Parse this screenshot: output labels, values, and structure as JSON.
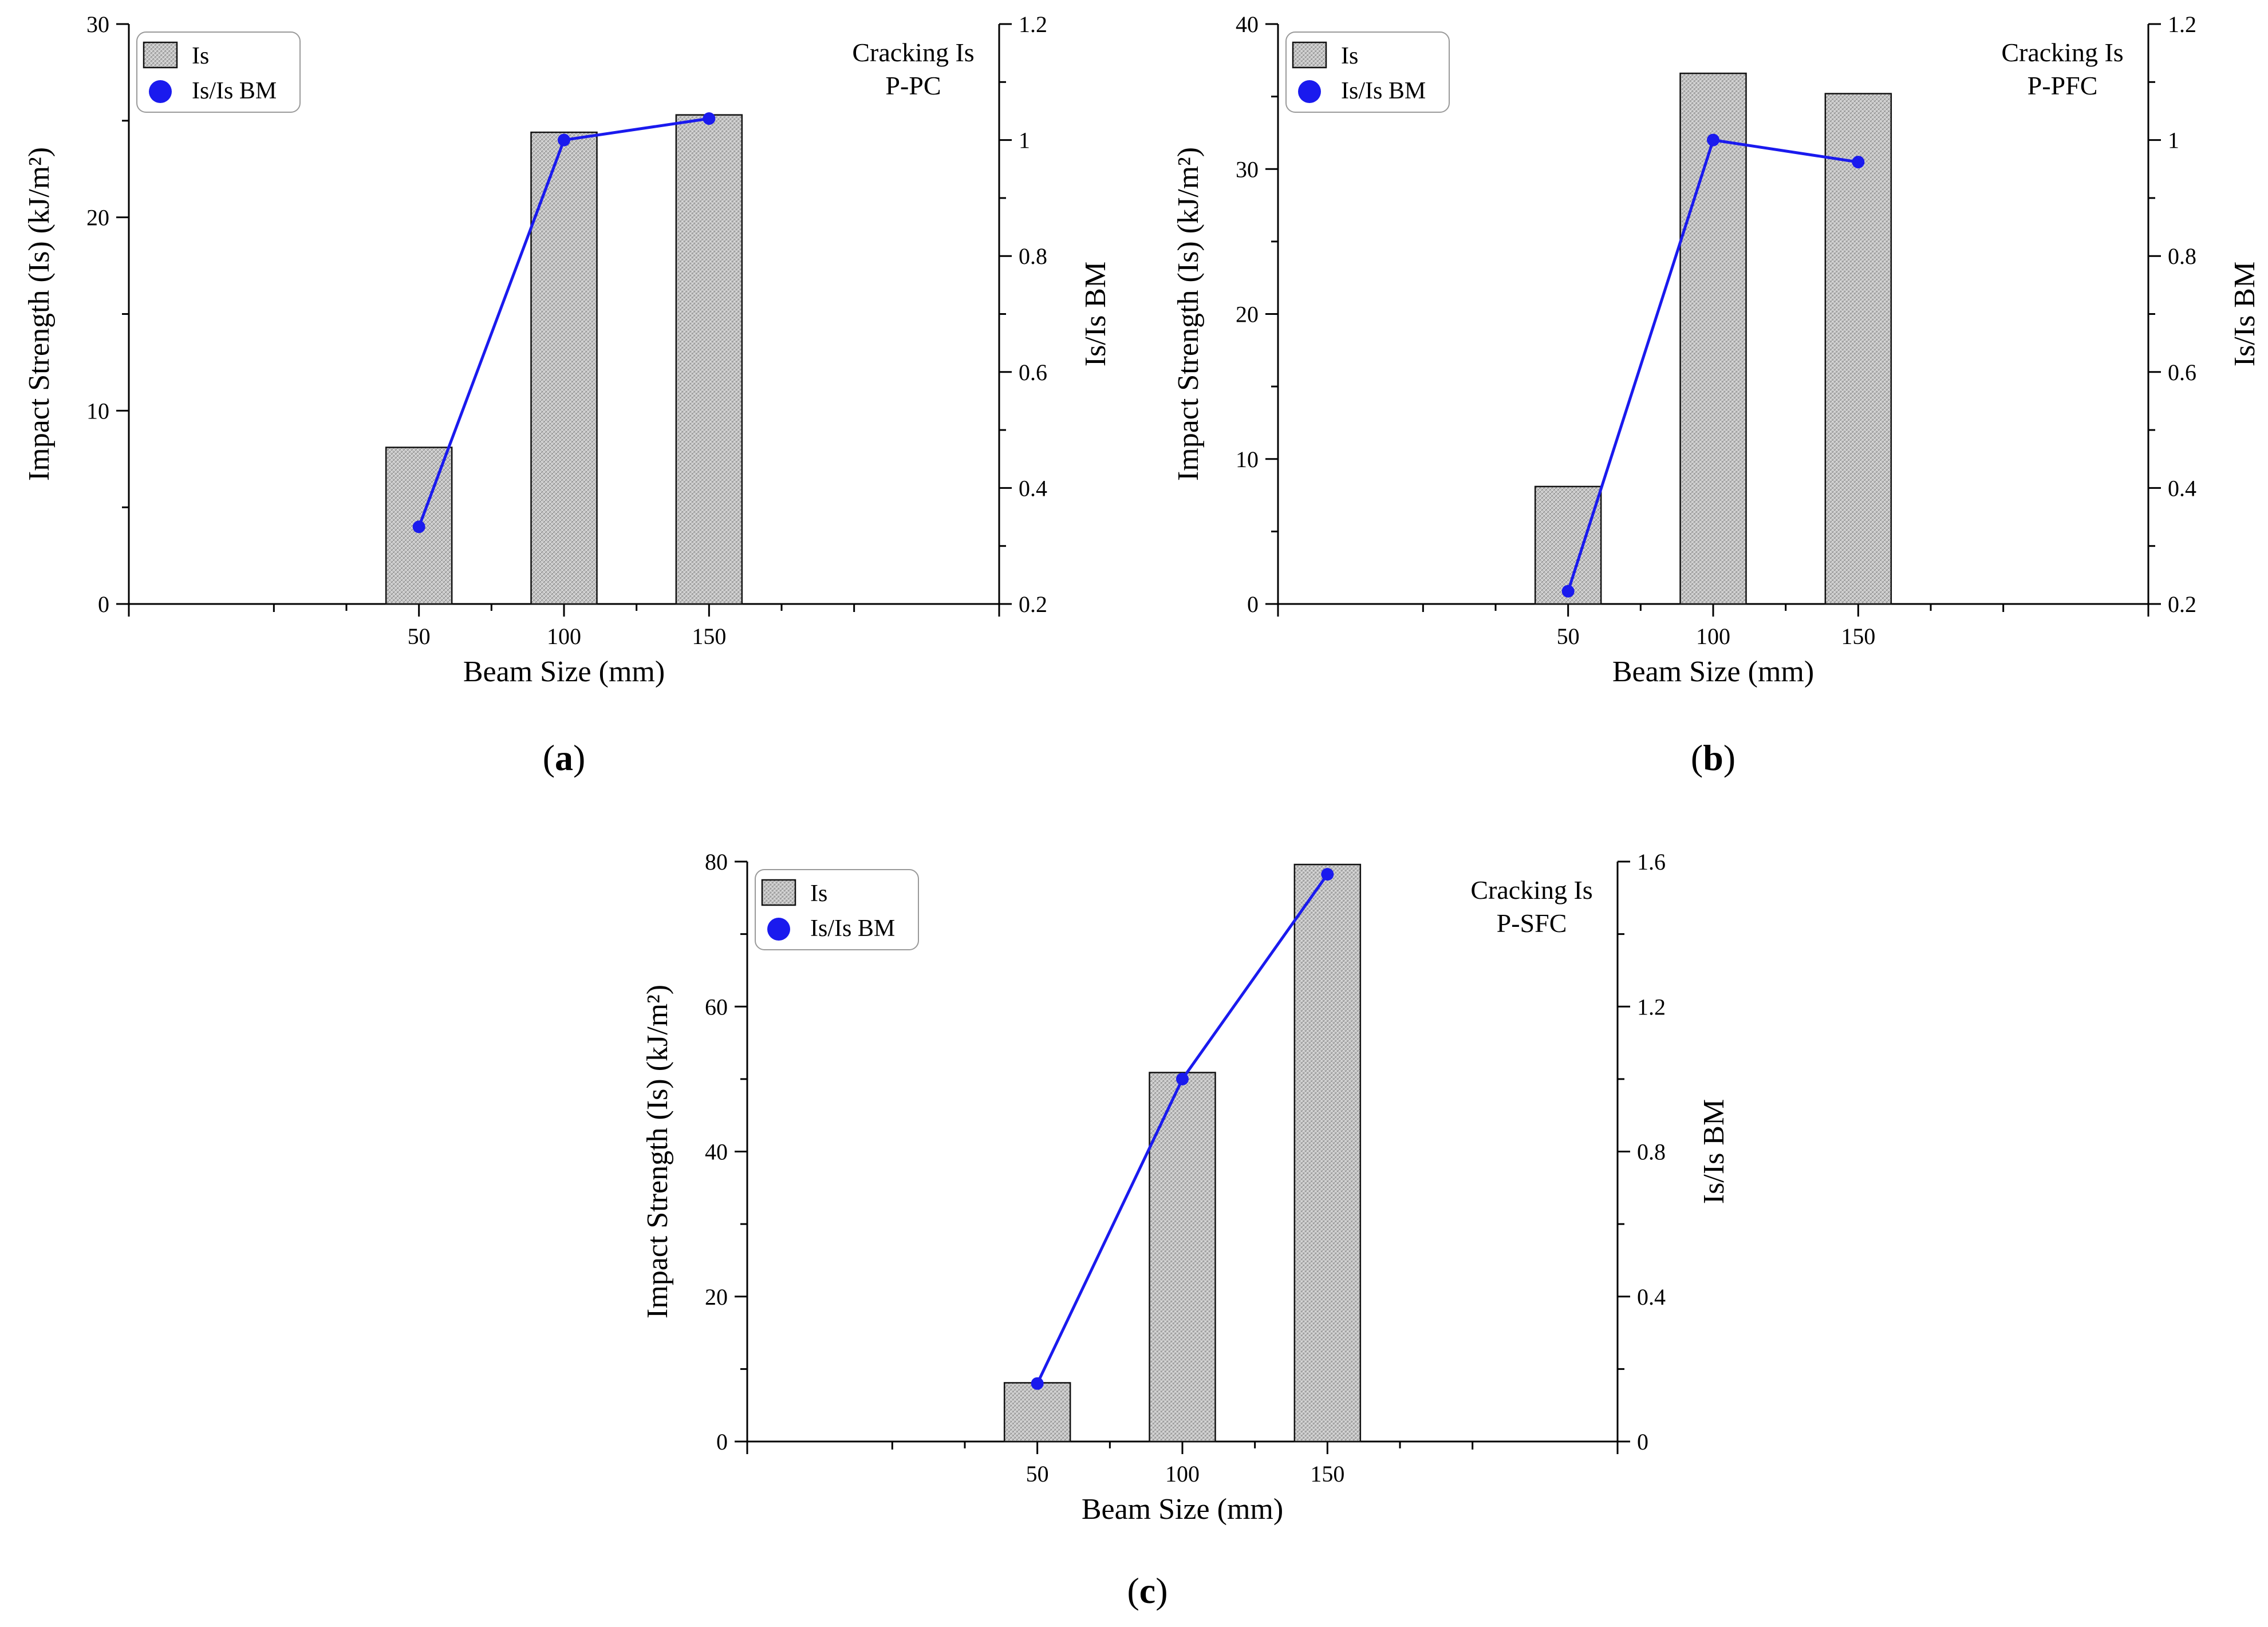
{
  "chart_data": [
    {
      "id": "a",
      "type": "bar",
      "panel_label": "a",
      "categories": [
        "50",
        "100",
        "150"
      ],
      "series": [
        {
          "name": "Is",
          "kind": "bar",
          "axis": "left",
          "values": [
            8.1,
            24.4,
            25.3
          ]
        },
        {
          "name": "Is/Is BM",
          "kind": "line",
          "axis": "right",
          "values": [
            0.333,
            1.0,
            1.037
          ]
        }
      ],
      "xlabel": "Beam Size (mm)",
      "ylabel": "Impact Strength (Is) (kJ/m²)",
      "y2label": "Is/Is BM",
      "ylim": [
        0,
        30
      ],
      "y_ticks": [
        "0",
        "10",
        "20",
        "30"
      ],
      "y2lim": [
        0.2,
        1.2
      ],
      "y2_ticks": [
        "0.2",
        "0.4",
        "0.6",
        "0.8",
        "1",
        "1.2"
      ],
      "annotation": [
        "Cracking Is",
        "P-PC"
      ],
      "legend": [
        "Is",
        "Is/Is BM"
      ]
    },
    {
      "id": "b",
      "type": "bar",
      "panel_label": "b",
      "categories": [
        "50",
        "100",
        "150"
      ],
      "series": [
        {
          "name": "Is",
          "kind": "bar",
          "axis": "left",
          "values": [
            8.1,
            36.6,
            35.2
          ]
        },
        {
          "name": "Is/Is BM",
          "kind": "line",
          "axis": "right",
          "values": [
            0.222,
            1.0,
            0.962
          ]
        }
      ],
      "xlabel": "Beam Size (mm)",
      "ylabel": "Impact Strength (Is) (kJ/m²)",
      "y2label": "Is/Is BM",
      "ylim": [
        0,
        40
      ],
      "y_ticks": [
        "0",
        "10",
        "20",
        "30",
        "40"
      ],
      "y2lim": [
        0.2,
        1.2
      ],
      "y2_ticks": [
        "0.2",
        "0.4",
        "0.6",
        "0.8",
        "1",
        "1.2"
      ],
      "annotation": [
        "Cracking Is",
        "P-PFC"
      ],
      "legend": [
        "Is",
        "Is/Is BM"
      ]
    },
    {
      "id": "c",
      "type": "bar",
      "panel_label": "c",
      "categories": [
        "50",
        "100",
        "150"
      ],
      "series": [
        {
          "name": "Is",
          "kind": "bar",
          "axis": "left",
          "values": [
            8.1,
            50.9,
            79.6
          ]
        },
        {
          "name": "Is/Is BM",
          "kind": "line",
          "axis": "right",
          "values": [
            0.16,
            1.0,
            1.565
          ]
        }
      ],
      "xlabel": "Beam Size (mm)",
      "ylabel": "Impact Strength (Is) (kJ/m²)",
      "y2label": "Is/Is BM",
      "ylim": [
        0,
        80
      ],
      "y_ticks": [
        "0",
        "20",
        "40",
        "60",
        "80"
      ],
      "y2lim": [
        0,
        1.6
      ],
      "y2_ticks": [
        "0",
        "0.4",
        "0.8",
        "1.2",
        "1.6"
      ],
      "annotation": [
        "Cracking Is",
        "P-SFC"
      ],
      "legend": [
        "Is",
        "Is/Is BM"
      ]
    }
  ],
  "colors": {
    "line": "#1a1aee",
    "marker": "#1a1aee",
    "bar_fill": "#c7c7c7",
    "axis": "#000000"
  }
}
